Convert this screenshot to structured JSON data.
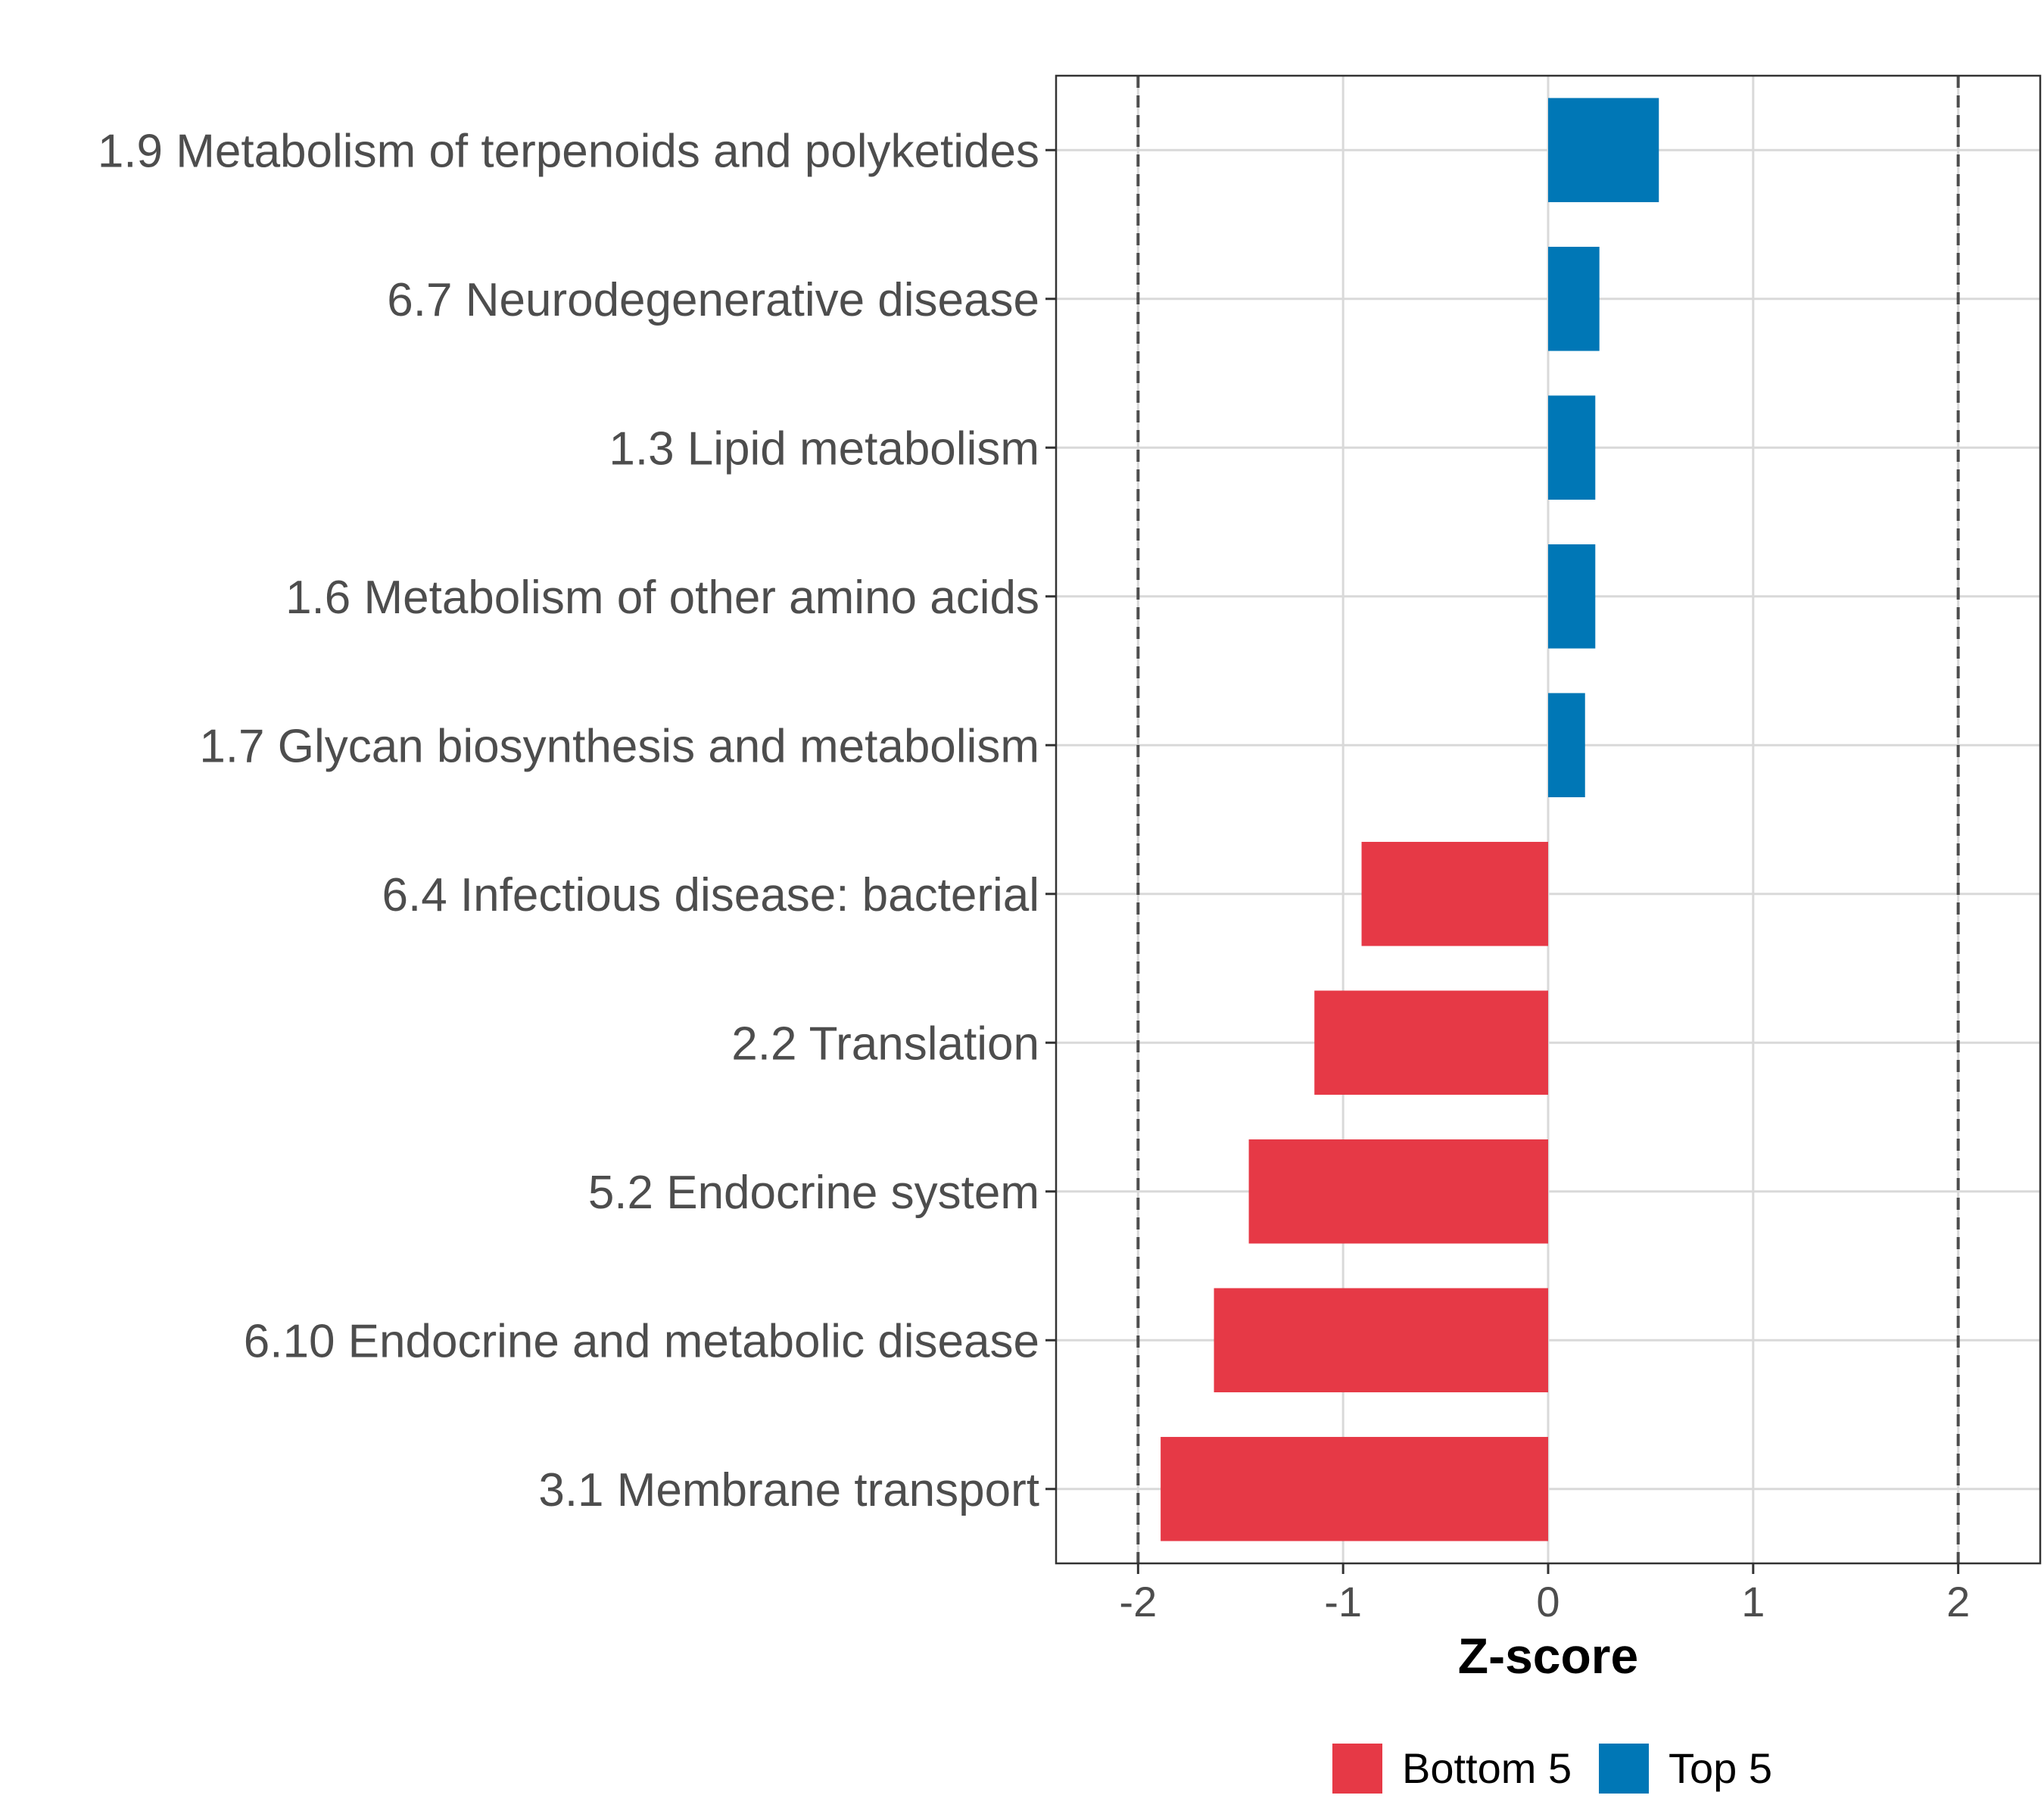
{
  "chart_data": {
    "type": "bar",
    "orientation": "horizontal",
    "categories": [
      "1.9 Metabolism of terpenoids and polyketides",
      "6.7 Neurodegenerative disease",
      "1.3 Lipid metabolism",
      "1.6 Metabolism of other amino acids",
      "1.7 Glycan biosynthesis and metabolism",
      "6.4 Infectious disease: bacterial",
      "2.2 Translation",
      "5.2 Endocrine system",
      "6.10 Endocrine and metabolic disease",
      "3.1 Membrane transport"
    ],
    "values": [
      0.54,
      0.25,
      0.23,
      0.23,
      0.18,
      -0.91,
      -1.14,
      -1.46,
      -1.63,
      -1.89
    ],
    "groups": [
      "Top 5",
      "Top 5",
      "Top 5",
      "Top 5",
      "Top 5",
      "Bottom 5",
      "Bottom 5",
      "Bottom 5",
      "Bottom 5",
      "Bottom 5"
    ],
    "xlabel": "Z-score",
    "ylabel": "",
    "xlim": [
      -2.4,
      2.4
    ],
    "xticks": [
      -2,
      -1,
      0,
      1,
      2
    ],
    "xtick_labels": [
      "-2",
      "-1",
      "0",
      "1",
      "2"
    ],
    "reference_lines": [
      -2,
      2
    ],
    "grid": true,
    "legend": [
      {
        "label": "Bottom 5",
        "color": "#e63946"
      },
      {
        "label": "Top 5",
        "color": "#0077b6"
      }
    ],
    "legend_position": "bottom"
  },
  "colors": {
    "Top 5": "#0077b6",
    "Bottom 5": "#e63946",
    "grid": "#d9d9d9",
    "panel_border": "#333333",
    "reference_line": "#4d4d4d"
  }
}
